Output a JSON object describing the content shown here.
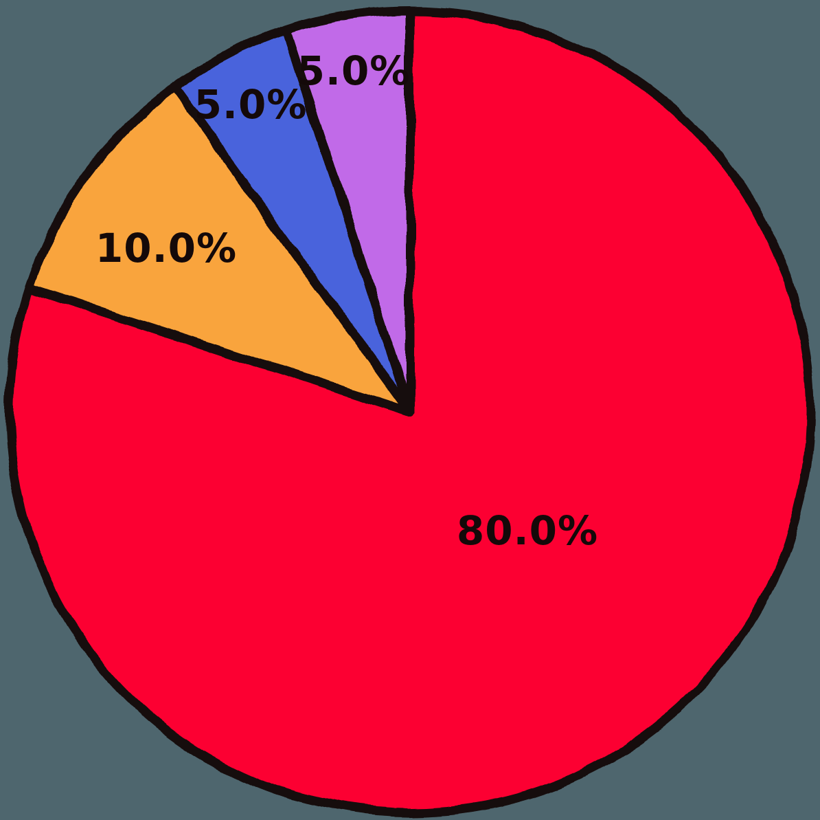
{
  "chart_data": {
    "type": "pie",
    "values": [
      80,
      10,
      5,
      5
    ],
    "slice_labels": [
      "80.0%",
      "10.0%",
      "5.0%",
      "5.0%"
    ],
    "colors": [
      "#fc0333",
      "#f9a43d",
      "#4a63dc",
      "#c16ae8"
    ],
    "start_angle_deg": 90,
    "direction": "clockwise",
    "style": "hand-drawn-sketch",
    "outline_color": "#190a0a",
    "label_text_color": "#140909",
    "background_color": "#4e666e",
    "legend_position": "none"
  }
}
